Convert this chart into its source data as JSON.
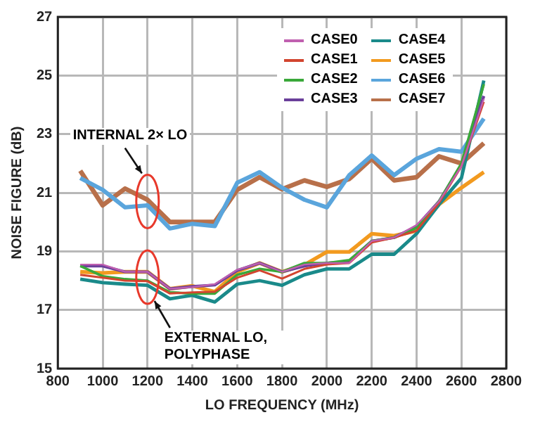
{
  "chart_data": {
    "type": "line",
    "xlabel": "LO FREQUENCY (MHz)",
    "ylabel": "NOISE FIGURE (dB)",
    "x": [
      900,
      1000,
      1100,
      1200,
      1300,
      1400,
      1500,
      1600,
      1700,
      1800,
      1900,
      2000,
      2100,
      2200,
      2300,
      2400,
      2500,
      2600,
      2700
    ],
    "xlim": [
      800,
      2800
    ],
    "xticks": [
      800,
      1000,
      1200,
      1400,
      1600,
      1800,
      2000,
      2200,
      2400,
      2600,
      2800
    ],
    "ylim": [
      15,
      27
    ],
    "yticks": [
      15,
      17,
      19,
      21,
      23,
      25,
      27
    ],
    "grid": true,
    "legend": "top right",
    "marker": "none",
    "line_style": "solid",
    "series": [
      {
        "name": "CASE0",
        "color": "#c060b0",
        "values": [
          18.55,
          18.55,
          18.3,
          18.3,
          17.72,
          17.78,
          17.88,
          18.37,
          18.6,
          18.3,
          18.55,
          18.6,
          18.6,
          19.35,
          19.47,
          19.9,
          20.7,
          21.9,
          24.2
        ]
      },
      {
        "name": "CASE1",
        "color": "#d2452f",
        "values": [
          18.2,
          18.1,
          18.0,
          17.98,
          17.56,
          17.6,
          17.62,
          18.1,
          18.35,
          18.07,
          18.4,
          18.55,
          18.6,
          19.3,
          19.47,
          19.7,
          20.65,
          21.9,
          24.1
        ]
      },
      {
        "name": "CASE2",
        "color": "#3aa83a",
        "values": [
          18.5,
          18.15,
          18.05,
          18.0,
          17.6,
          17.56,
          17.56,
          18.2,
          18.4,
          18.3,
          18.6,
          18.6,
          18.7,
          19.35,
          19.47,
          19.8,
          20.7,
          22.0,
          24.7
        ]
      },
      {
        "name": "CASE3",
        "color": "#6a3f9a",
        "values": [
          18.5,
          18.5,
          18.3,
          18.3,
          17.72,
          17.8,
          17.85,
          18.35,
          18.6,
          18.3,
          18.5,
          18.6,
          18.65,
          19.35,
          19.47,
          19.85,
          20.7,
          21.95,
          24.3
        ]
      },
      {
        "name": "CASE4",
        "color": "#1a8a8a",
        "values": [
          18.05,
          17.93,
          17.88,
          17.84,
          17.38,
          17.5,
          17.27,
          17.88,
          18.0,
          17.84,
          18.2,
          18.4,
          18.4,
          18.9,
          18.9,
          19.6,
          20.6,
          21.5,
          24.83
        ]
      },
      {
        "name": "CASE5",
        "color": "#f29a1f",
        "values": [
          18.3,
          18.26,
          18.3,
          18.3,
          17.72,
          17.82,
          17.62,
          18.3,
          18.6,
          18.3,
          18.54,
          18.98,
          18.98,
          19.6,
          19.53,
          19.7,
          20.6,
          21.17,
          21.7
        ]
      },
      {
        "name": "CASE6",
        "color": "#5aa5dc",
        "values": [
          21.5,
          21.1,
          20.5,
          20.57,
          19.78,
          19.94,
          19.86,
          21.34,
          21.7,
          21.17,
          20.76,
          20.5,
          21.6,
          22.27,
          21.6,
          22.16,
          22.49,
          22.4,
          23.53
        ]
      },
      {
        "name": "CASE7",
        "color": "#b8704a",
        "values": [
          21.75,
          20.57,
          21.14,
          20.76,
          20.0,
          20.0,
          20.0,
          21.1,
          21.53,
          21.12,
          21.42,
          21.2,
          21.47,
          22.16,
          21.42,
          21.53,
          22.24,
          22.0,
          22.69
        ]
      }
    ],
    "annotations": [
      "INTERNAL 2× LO",
      "EXTERNAL LO, POLYPHASE"
    ]
  }
}
